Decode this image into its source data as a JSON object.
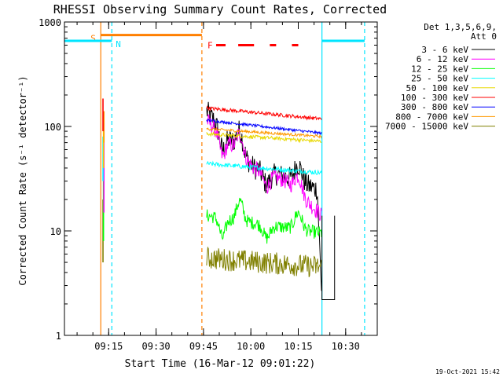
{
  "chart_data": {
    "type": "line",
    "title": "RHESSI Observing Summary Count Rates, Corrected",
    "xlabel": "Start Time (16-Mar-12 09:01:22)",
    "ylabel": "Corrected Count Rate (s⁻¹ detector⁻¹)",
    "yscale": "log",
    "ylim": [
      1,
      1000
    ],
    "xlim_minutes": [
      0,
      99
    ],
    "x_ticks": [
      {
        "min": 14,
        "label": "09:15"
      },
      {
        "min": 29,
        "label": "09:30"
      },
      {
        "min": 44,
        "label": "09:45"
      },
      {
        "min": 59,
        "label": "10:00"
      },
      {
        "min": 74,
        "label": "10:15"
      },
      {
        "min": 89,
        "label": "10:30"
      }
    ],
    "y_ticks": [
      {
        "value": 1,
        "label": "1"
      },
      {
        "value": 10,
        "label": "10"
      },
      {
        "value": 100,
        "label": "100"
      },
      {
        "value": 1000,
        "label": "1000"
      }
    ],
    "legend": {
      "header": "Det 1,3,5,6,9,",
      "subheader": "Att 0",
      "position": "right"
    },
    "series": [
      {
        "name": "3 - 6 keV",
        "color": "#000000",
        "base": 3.5,
        "bump": 1.0,
        "noise": 0.25,
        "times": [
          [
            45,
            60
          ],
          [
            60,
            70
          ],
          [
            70,
            80
          ],
          [
            80,
            81.5
          ]
        ],
        "values": [
          [
            140,
            40
          ],
          [
            40,
            33
          ],
          [
            33,
            25
          ],
          [
            25,
            2.2
          ]
        ]
      },
      {
        "name": "6 - 12 keV",
        "color": "#ff00ff",
        "noise": 0.18,
        "times": [
          [
            45,
            60
          ],
          [
            60,
            70
          ],
          [
            70,
            81.5
          ]
        ],
        "values": [
          [
            115,
            40
          ],
          [
            40,
            30
          ],
          [
            30,
            14
          ]
        ]
      },
      {
        "name": "12 - 25 keV",
        "color": "#00ff00",
        "noise": 0.15,
        "times": [
          [
            45,
            81.5
          ]
        ],
        "values": [
          [
            14,
            9.5
          ]
        ]
      },
      {
        "name": "25 - 50 keV",
        "color": "#00ffff",
        "noise": 0.05,
        "times": [
          [
            45,
            81.5
          ]
        ],
        "values": [
          [
            44,
            36
          ]
        ]
      },
      {
        "name": "50 - 100 keV",
        "color": "#e8d800",
        "noise": 0.04,
        "times": [
          [
            45,
            81.5
          ]
        ],
        "values": [
          [
            85,
            72
          ]
        ]
      },
      {
        "name": "100 - 300 keV",
        "color": "#ff0000",
        "noise": 0.04,
        "times": [
          [
            45,
            81.5
          ]
        ],
        "values": [
          [
            150,
            118
          ]
        ]
      },
      {
        "name": "300 - 800 keV",
        "color": "#0000ff",
        "noise": 0.03,
        "times": [
          [
            45,
            81.5
          ]
        ],
        "values": [
          [
            115,
            86
          ]
        ]
      },
      {
        "name": "800 - 7000 keV",
        "color": "#ff9900",
        "noise": 0.03,
        "times": [
          [
            45,
            81.5
          ]
        ],
        "values": [
          [
            95,
            80
          ]
        ]
      },
      {
        "name": "7000 - 15000 keV",
        "color": "#808000",
        "noise": 0.25,
        "times": [
          [
            45,
            81.5
          ]
        ],
        "values": [
          [
            5.5,
            4.5
          ]
        ]
      }
    ],
    "flags": [
      {
        "label": "S",
        "color": "#ff7f00",
        "start_min": 11.5,
        "end_min": 43.5,
        "value": 750
      },
      {
        "label": "N",
        "color": "#00e5ff",
        "start_min": 0,
        "end_min": 15,
        "value": 660
      },
      {
        "label": "F",
        "color": "#ff0000",
        "dashes_min": [
          [
            48,
            51
          ],
          [
            55,
            60
          ],
          [
            65,
            67
          ],
          [
            72,
            74
          ]
        ],
        "value": 600
      }
    ],
    "vertical_lines": [
      {
        "min": 11.5,
        "color": "#ff7f00",
        "style": "solid"
      },
      {
        "min": 15,
        "color": "#00e5ff",
        "style": "dashed"
      },
      {
        "min": 43.5,
        "color": "#ff7f00",
        "style": "dashed"
      },
      {
        "min": 81.5,
        "color": "#00e5ff",
        "style": "solid"
      },
      {
        "min": 95,
        "color": "#00e5ff",
        "style": "dashed"
      }
    ]
  },
  "footer": {
    "timestamp": "19-Oct-2021 15:42"
  }
}
